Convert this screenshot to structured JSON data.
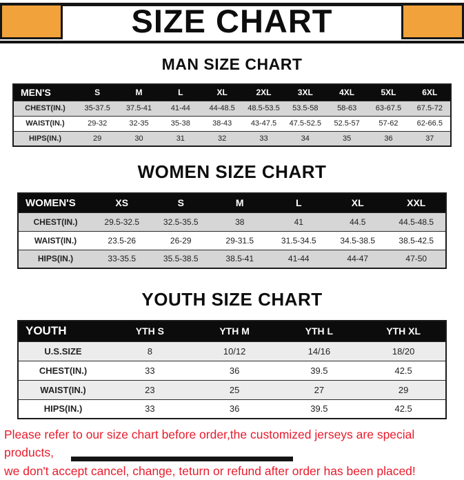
{
  "title": "SIZE CHART",
  "headings": {
    "men": "MAN SIZE CHART",
    "women": "WOMEN SIZE CHART",
    "youth": "YOUTH SIZE CHART"
  },
  "tables": [
    {
      "id": "men",
      "header": [
        "MEN'S",
        "S",
        "M",
        "L",
        "XL",
        "2XL",
        "3XL",
        "4XL",
        "5XL",
        "6XL"
      ],
      "rows": [
        {
          "label": "CHEST(IN.)",
          "shaded": true,
          "values": [
            "35-37.5",
            "37.5-41",
            "41-44",
            "44-48.5",
            "48.5-53.5",
            "53.5-58",
            "58-63",
            "63-67.5",
            "67.5-72"
          ]
        },
        {
          "label": "WAIST(IN.)",
          "shaded": false,
          "values": [
            "29-32",
            "32-35",
            "35-38",
            "38-43",
            "43-47.5",
            "47.5-52.5",
            "52.5-57",
            "57-62",
            "62-66.5"
          ]
        },
        {
          "label": "HIPS(IN.)",
          "shaded": true,
          "values": [
            "29",
            "30",
            "31",
            "32",
            "33",
            "34",
            "35",
            "36",
            "37"
          ]
        }
      ]
    },
    {
      "id": "women",
      "header": [
        "WOMEN'S",
        "XS",
        "S",
        "M",
        "L",
        "XL",
        "XXL"
      ],
      "rows": [
        {
          "label": "CHEST(IN.)",
          "shaded": true,
          "values": [
            "29.5-32.5",
            "32.5-35.5",
            "38",
            "41",
            "44.5",
            "44.5-48.5"
          ]
        },
        {
          "label": "WAIST(IN.)",
          "shaded": false,
          "values": [
            "23.5-26",
            "26-29",
            "29-31.5",
            "31.5-34.5",
            "34.5-38.5",
            "38.5-42.5"
          ]
        },
        {
          "label": "HIPS(IN.)",
          "shaded": true,
          "values": [
            "33-35.5",
            "35.5-38.5",
            "38.5-41",
            "41-44",
            "44-47",
            "47-50"
          ]
        }
      ]
    },
    {
      "id": "youth",
      "header": [
        "YOUTH",
        "YTH S",
        "YTH M",
        "YTH L",
        "YTH XL"
      ],
      "rows": [
        {
          "label": "U.S.SIZE",
          "shaded": true,
          "values": [
            "8",
            "10/12",
            "14/16",
            "18/20"
          ]
        },
        {
          "label": "CHEST(IN.)",
          "shaded": false,
          "values": [
            "33",
            "36",
            "39.5",
            "42.5"
          ]
        },
        {
          "label": "WAIST(IN.)",
          "shaded": true,
          "values": [
            "23",
            "25",
            "27",
            "29"
          ]
        },
        {
          "label": "HIPS(IN.)",
          "shaded": false,
          "values": [
            "33",
            "36",
            "39.5",
            "42.5"
          ]
        }
      ]
    }
  ],
  "footer": {
    "line1": "Please refer to our size chart before order,the customized jerseys are special products,",
    "line2": "we don't accept cancel, change, teturn or refund after order has been placed!"
  },
  "colors": {
    "accent_orange": "#f2a23a",
    "table_header_black": "#0c0c0c",
    "shaded_row_gray": "#d6d6d6",
    "footer_red": "#e81b2c"
  }
}
